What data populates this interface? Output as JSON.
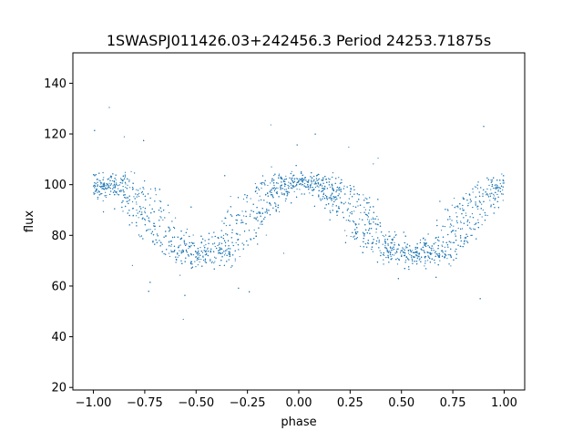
{
  "chart_data": {
    "type": "scatter",
    "title": "1SWASPJ011426.03+242456.3 Period 24253.71875s",
    "xlabel": "phase",
    "ylabel": "flux",
    "xlim": [
      -1.1,
      1.1
    ],
    "ylim": [
      19,
      152
    ],
    "xticks": [
      "−1.00",
      "−0.75",
      "−0.50",
      "−0.25",
      "0.00",
      "0.25",
      "0.50",
      "0.75",
      "1.00"
    ],
    "xtick_values": [
      -1.0,
      -0.75,
      -0.5,
      -0.25,
      0.0,
      0.25,
      0.5,
      0.75,
      1.0
    ],
    "yticks": [
      "20",
      "40",
      "60",
      "80",
      "100",
      "120",
      "140"
    ],
    "ytick_values": [
      20,
      40,
      60,
      80,
      100,
      120,
      140
    ],
    "point_color": "#1f77b4",
    "grid": false,
    "legend": "none",
    "series": [
      {
        "x": [
          -1.0,
          -0.95,
          -0.9,
          -0.85,
          -0.8,
          -0.75,
          -0.7,
          -0.65,
          -0.6,
          -0.55,
          -0.5,
          -0.45,
          -0.4,
          -0.35,
          -0.3,
          -0.25,
          -0.2,
          -0.15,
          -0.1,
          -0.05,
          0.0,
          0.05,
          0.1,
          0.15,
          0.2,
          0.25,
          0.3,
          0.35,
          0.4,
          0.45,
          0.5,
          0.55,
          0.6,
          0.65,
          0.7,
          0.75,
          0.8,
          0.85,
          0.9,
          0.95,
          1.0
        ],
        "y": [
          99,
          101,
          101,
          99,
          95,
          90,
          85,
          80,
          76,
          73,
          72,
          72,
          73,
          76,
          80,
          86,
          92,
          97,
          100,
          101,
          101,
          101,
          100,
          98,
          95,
          91,
          86,
          81,
          77,
          74,
          72,
          72,
          72,
          73,
          76,
          80,
          85,
          91,
          96,
          99,
          100
        ]
      }
    ]
  }
}
